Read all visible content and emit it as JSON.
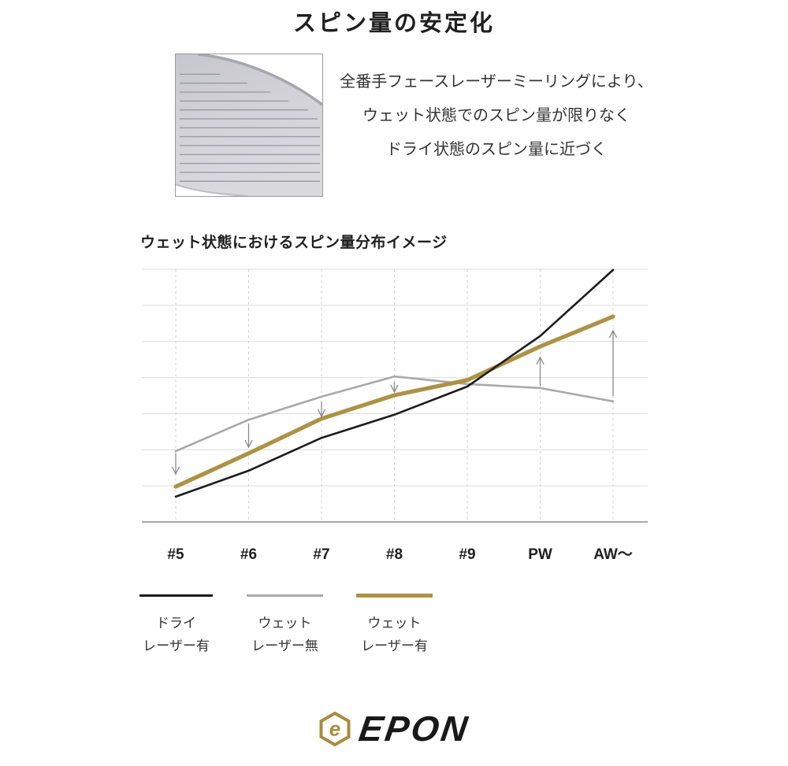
{
  "page": {
    "title": "スピン量の安定化",
    "description_lines": [
      "全番手フェースレーザーミーリングにより、",
      "ウェット状態でのスピン量が限りなく",
      "ドライ状態のスピン量に近づく"
    ]
  },
  "chart_data": {
    "type": "line",
    "title": "ウェット状態におけるスピン量分布イメージ",
    "categories": [
      "#5",
      "#6",
      "#7",
      "#8",
      "#9",
      "PW",
      "AW〜"
    ],
    "series": [
      {
        "name": "ウェット レーザー無",
        "color": "#a9a9a9",
        "width": 2.6,
        "values": [
          1.96,
          2.83,
          3.47,
          4.03,
          3.82,
          3.71,
          3.34
        ]
      },
      {
        "name": "ウェット レーザー有",
        "color": "#ad9245",
        "width": 5.2,
        "values": [
          0.98,
          1.9,
          2.86,
          3.51,
          3.93,
          4.86,
          5.69
        ]
      },
      {
        "name": "ドライ レーザー有",
        "color": "#1c1c1c",
        "width": 2.6,
        "values": [
          0.7,
          1.42,
          2.33,
          2.97,
          3.75,
          5.15,
          6.98
        ]
      }
    ],
    "arrows": [
      {
        "category": "#5",
        "direction": "down",
        "from": 1.9,
        "to": 1.33
      },
      {
        "category": "#6",
        "direction": "down",
        "from": 2.73,
        "to": 2.07
      },
      {
        "category": "#7",
        "direction": "down",
        "from": 3.34,
        "to": 2.92
      },
      {
        "category": "#8",
        "direction": "down",
        "from": 3.88,
        "to": 3.6
      },
      {
        "category": "PW",
        "direction": "up",
        "from": 3.77,
        "to": 4.56
      },
      {
        "category": "AW〜",
        "direction": "up",
        "from": 3.49,
        "to": 5.3
      }
    ],
    "ylim": [
      0,
      7
    ],
    "y_axis_labels": "none (image chart, arbitrary spin units)",
    "gridlines": {
      "horizontal": "solid",
      "vertical": "dashed at each category"
    },
    "legend_position": "below"
  },
  "legend": {
    "items": [
      {
        "line1": "ドライ",
        "line2": "レーザー有",
        "color": "#1c1c1c",
        "thickness": 3
      },
      {
        "line1": "ウェット",
        "line2": "レーザー無",
        "color": "#a9a9a9",
        "thickness": 3
      },
      {
        "line1": "ウェット",
        "line2": "レーザー有",
        "color": "#ad9245",
        "thickness": 5
      }
    ]
  },
  "logo": {
    "text": "EPON",
    "icon": "epon-hexagon-e-mark"
  },
  "icons": {
    "face_image": "laser-milled-club-face-closeup"
  },
  "colors": {
    "gridline": "#dcdcdc",
    "axis_baseline": "#a8a8a8",
    "dashed_guide": "#cfcfcf",
    "arrow": "#8a8a8a",
    "black_line": "#1c1c1c",
    "gray_line": "#a9a9a9",
    "gold_line": "#ad9245",
    "brand_gold": "#a88c3e",
    "text_dark": "#1f1f1f",
    "text_body": "#333333"
  }
}
